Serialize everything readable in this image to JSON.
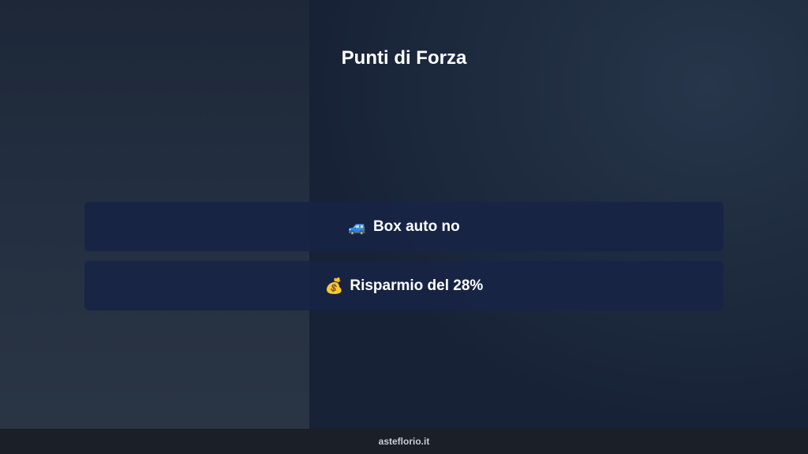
{
  "title": "Punti di Forza",
  "items": [
    {
      "icon": "🚙",
      "label": "Box auto no"
    },
    {
      "icon": "💰",
      "label": "Risparmio del 28%"
    }
  ],
  "footer": "asteflorio.it"
}
